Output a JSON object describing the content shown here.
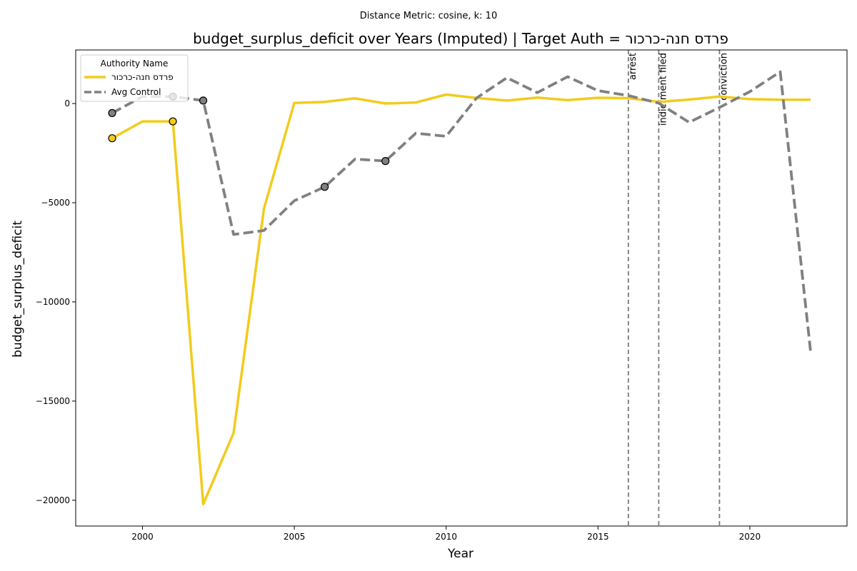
{
  "chart_data": {
    "type": "line",
    "suptitle": "Distance Metric: cosine, k: 10",
    "title": "budget_surplus_deficit over Years (Imputed) | Target Auth = פרדס חנה-כרכור",
    "xlabel": "Year",
    "ylabel": "budget_surplus_deficit",
    "xlim": [
      1997.8,
      2023.2
    ],
    "ylim": [
      -21300,
      2700
    ],
    "xticks": [
      2000,
      2005,
      2010,
      2015,
      2020
    ],
    "yticks": [
      0,
      -5000,
      -10000,
      -15000,
      -20000
    ],
    "grid": false,
    "legend": {
      "title": "Authority Name",
      "placement": "top-left"
    },
    "x": [
      1999,
      2000,
      2001,
      2002,
      2003,
      2004,
      2005,
      2006,
      2007,
      2008,
      2009,
      2010,
      2011,
      2012,
      2013,
      2014,
      2015,
      2016,
      2017,
      2018,
      2019,
      2020,
      2021,
      2022
    ],
    "series": [
      {
        "name": "פרדס חנה-כרכור",
        "color": "#f2cb1d",
        "style": "solid",
        "values": [
          -1750,
          -900,
          -900,
          -20200,
          -16600,
          -5300,
          30,
          80,
          260,
          0,
          50,
          450,
          280,
          150,
          300,
          170,
          290,
          270,
          80,
          200,
          350,
          220,
          190,
          190
        ],
        "imputed_x": [
          1999,
          2001
        ]
      },
      {
        "name": "Avg Control",
        "color": "#808080",
        "style": "dashed",
        "values": [
          -480,
          350,
          350,
          150,
          -6600,
          -6400,
          -4900,
          -4200,
          -2800,
          -2900,
          -1500,
          -1650,
          280,
          1300,
          550,
          1350,
          650,
          400,
          20,
          -950,
          -200,
          600,
          1600,
          -12500
        ],
        "imputed_x": [
          1999,
          2001,
          2002,
          2006,
          2008
        ]
      }
    ],
    "events": [
      {
        "x": 2016,
        "label": "arrest"
      },
      {
        "x": 2017,
        "label": "indictment filed"
      },
      {
        "x": 2019,
        "label": "conviction"
      }
    ]
  }
}
